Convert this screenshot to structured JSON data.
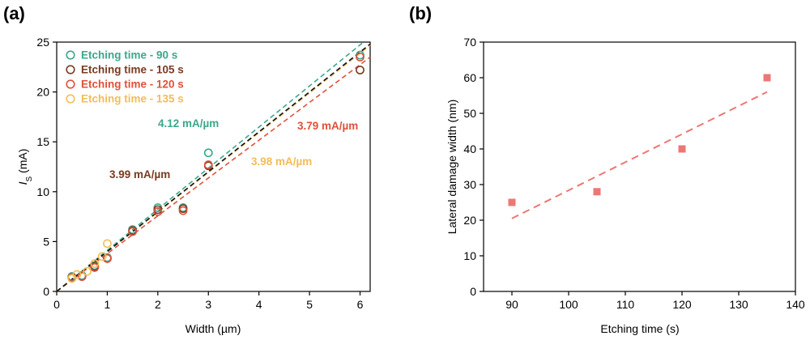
{
  "chart_data": [
    {
      "panel": "(a)",
      "type": "scatter",
      "xlabel": "Width (µm)",
      "ylabel_main": "I",
      "ylabel_sub": "S",
      "ylabel_unit": " (mA)",
      "xlim": [
        0,
        6.2
      ],
      "ylim": [
        0,
        25
      ],
      "xticks": [
        0,
        1,
        2,
        3,
        4,
        5,
        6
      ],
      "yticks": [
        0,
        5,
        10,
        15,
        20,
        25
      ],
      "series": [
        {
          "name": "Etching time - 90 s",
          "color": "#3aa88a",
          "slope": 4.12,
          "fit_label": "4.12 mA/µm",
          "x": [
            0.3,
            0.5,
            0.75,
            1.0,
            1.5,
            2.0,
            2.5,
            3.0,
            6.0
          ],
          "y": [
            1.5,
            1.6,
            2.6,
            3.4,
            6.2,
            8.4,
            8.4,
            13.9,
            23.7
          ]
        },
        {
          "name": "Etching time - 105 s",
          "color": "#7b3a22",
          "slope": 3.99,
          "fit_label": "3.99 mA/µm",
          "x": [
            0.3,
            0.5,
            0.75,
            1.0,
            1.5,
            2.0,
            2.5,
            3.0,
            6.0
          ],
          "y": [
            1.4,
            1.5,
            2.5,
            3.3,
            6.1,
            8.2,
            8.3,
            12.6,
            22.2
          ]
        },
        {
          "name": "Etching time - 120 s",
          "color": "#e0513a",
          "slope": 3.79,
          "fit_label": "3.79 mA/µm",
          "x": [
            0.3,
            0.5,
            0.75,
            1.0,
            1.5,
            2.0,
            2.5,
            3.0,
            6.0
          ],
          "y": [
            1.4,
            1.5,
            2.4,
            3.3,
            6.0,
            8.0,
            8.1,
            12.7,
            23.5
          ]
        },
        {
          "name": "Etching time - 135 s",
          "color": "#f2bd56",
          "slope": 3.98,
          "fit_label": "3.98 mA/µm",
          "x": [
            0.3,
            0.4,
            0.6,
            0.75,
            0.9,
            1.0
          ],
          "y": [
            1.3,
            1.7,
            2.0,
            2.8,
            3.5,
            4.8
          ]
        }
      ],
      "black_fit_slope": 4.0
    },
    {
      "panel": "(b)",
      "type": "scatter",
      "xlabel": "Etching time (s)",
      "ylabel": "Lateral damage width (nm)",
      "xlim": [
        85,
        140
      ],
      "ylim": [
        0,
        70
      ],
      "xticks": [
        90,
        100,
        110,
        120,
        130,
        140
      ],
      "yticks": [
        0,
        10,
        20,
        30,
        40,
        50,
        60,
        70
      ],
      "color": "#ec7774",
      "x": [
        90,
        105,
        120,
        135
      ],
      "y": [
        25,
        28,
        40,
        60
      ],
      "fit": {
        "x": [
          90,
          135
        ],
        "y": [
          20.5,
          56.0
        ]
      }
    }
  ]
}
